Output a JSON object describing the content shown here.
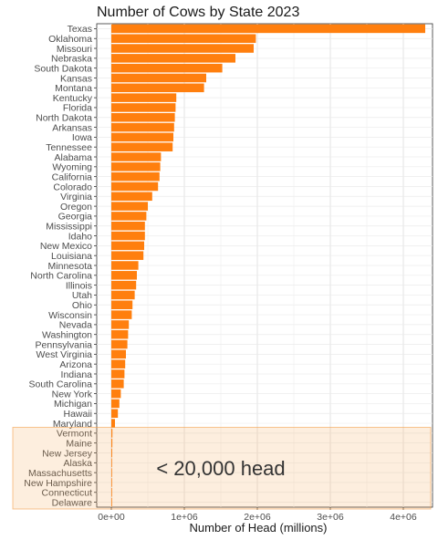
{
  "chart_data": {
    "type": "bar",
    "orientation": "horizontal",
    "title": "Number of Cows by State 2023",
    "xlabel": "Number of Head (millions)",
    "ylabel": "",
    "xlim": [
      0,
      4500000
    ],
    "x_ticks": [
      0,
      1000000,
      2000000,
      3000000,
      4000000
    ],
    "x_tick_labels": [
      "0e+00",
      "1e+06",
      "2e+06",
      "3e+06",
      "4e+06"
    ],
    "grid": true,
    "bar_color": "#ff7f0e",
    "categories": [
      "Texas",
      "Oklahoma",
      "Missouri",
      "Nebraska",
      "South Dakota",
      "Kansas",
      "Montana",
      "Kentucky",
      "Florida",
      "North Dakota",
      "Arkansas",
      "Iowa",
      "Tennessee",
      "Alabama",
      "Wyoming",
      "California",
      "Colorado",
      "Virginia",
      "Oregon",
      "Georgia",
      "Mississippi",
      "Idaho",
      "New Mexico",
      "Louisiana",
      "Minnesota",
      "North Carolina",
      "Illinois",
      "Utah",
      "Ohio",
      "Wisconsin",
      "Nevada",
      "Washington",
      "Pennsylvania",
      "West Virginia",
      "Arizona",
      "Indiana",
      "South Carolina",
      "New York",
      "Michigan",
      "Hawaii",
      "Maryland",
      "Vermont",
      "Maine",
      "New Jersey",
      "Alaska",
      "Massachusetts",
      "New Hampshire",
      "Connecticut",
      "Delaware"
    ],
    "values": [
      4300000,
      1980000,
      1950000,
      1700000,
      1520000,
      1300000,
      1270000,
      890000,
      880000,
      870000,
      860000,
      850000,
      840000,
      680000,
      670000,
      660000,
      640000,
      560000,
      500000,
      480000,
      460000,
      460000,
      450000,
      440000,
      370000,
      350000,
      340000,
      320000,
      290000,
      280000,
      240000,
      230000,
      220000,
      200000,
      190000,
      180000,
      170000,
      130000,
      110000,
      90000,
      50000,
      15000,
      14000,
      12000,
      10000,
      9000,
      8000,
      7000,
      6000
    ],
    "annotation": {
      "text": "< 20,000 head",
      "highlight_color": "#f5a04a",
      "highlight_from": "Vermont",
      "highlight_to": "Delaware"
    }
  }
}
